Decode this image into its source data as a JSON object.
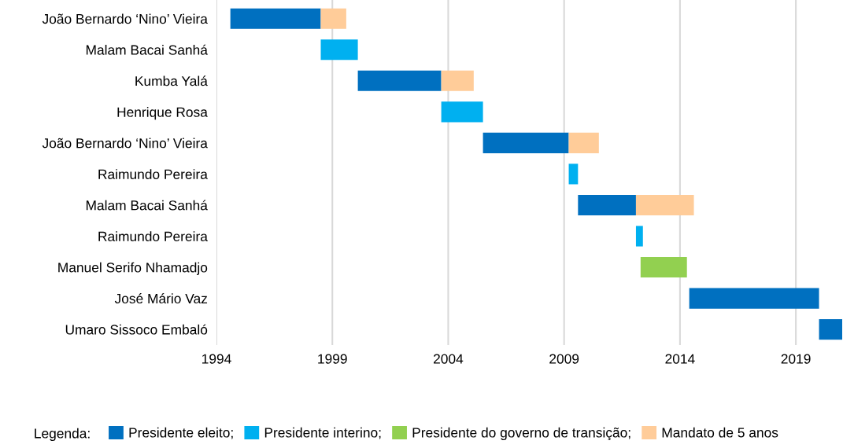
{
  "chart_data": {
    "type": "bar",
    "orientation": "horizontal",
    "categories": [
      "João Bernardo ‘Nino’ Vieira",
      "Malam Bacai Sanhá",
      "Kumba Yalá",
      "Henrique Rosa",
      "João Bernardo ‘Nino’ Vieira",
      "Raimundo Pereira",
      "Malam Bacai Sanhá",
      "Raimundo Pereira",
      "Manuel Serifo Nhamadjo",
      "José Mário Vaz",
      "Umaro Sissoco Embaló"
    ],
    "series": [
      {
        "name": "Presidente eleito;",
        "color": "#0070c0",
        "base": [
          1994.6,
          null,
          2000.1,
          null,
          2005.5,
          null,
          2009.6,
          null,
          null,
          2014.4,
          2020.0
        ],
        "values": [
          3.9,
          null,
          3.6,
          null,
          3.7,
          null,
          2.5,
          null,
          null,
          5.6,
          1.0
        ]
      },
      {
        "name": "Presidente interino;",
        "color": "#00b0f0",
        "base": [
          null,
          1998.5,
          null,
          2003.7,
          null,
          2009.2,
          null,
          2012.1,
          null,
          null,
          null
        ],
        "values": [
          null,
          1.6,
          null,
          1.8,
          null,
          0.4,
          null,
          0.3,
          null,
          null,
          null
        ]
      },
      {
        "name": "Presidente do governo de transição;",
        "color": "#92d050",
        "base": [
          null,
          null,
          null,
          null,
          null,
          null,
          null,
          null,
          2012.3,
          null,
          null
        ],
        "values": [
          null,
          null,
          null,
          null,
          null,
          null,
          null,
          null,
          2.0,
          null,
          null
        ]
      },
      {
        "name": "Mandato de 5 anos",
        "color": "#ffcc99",
        "base": [
          1998.5,
          null,
          2003.7,
          null,
          2009.2,
          null,
          2012.1,
          null,
          null,
          null,
          null
        ],
        "values": [
          1.1,
          null,
          1.4,
          null,
          1.3,
          null,
          2.5,
          null,
          null,
          null,
          null
        ]
      }
    ],
    "xlim": [
      1994,
      2021
    ],
    "xticks": [
      1994,
      1999,
      2004,
      2009,
      2014,
      2019
    ],
    "grid": "x",
    "legend": "bottom",
    "legend_title": "Legenda:"
  }
}
